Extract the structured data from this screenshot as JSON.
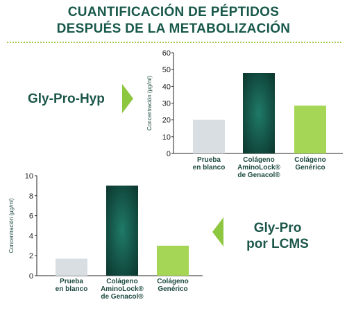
{
  "title": {
    "line1": "CUANTIFICACIÓN DE PÉPTIDOS",
    "line2": "DESPUÉS DE LA METABOLIZACIÓN"
  },
  "colors": {
    "title": "#18584a",
    "divider": "#9cc84a",
    "arrow": "#8dc63f",
    "blank_bar": "#d9dee3",
    "amino_bar_center": "#1f7a68",
    "amino_bar_edge": "#0d3a31",
    "generic_bar": "#a6d655"
  },
  "icons": {
    "arrow_right": "triangle-right-icon",
    "arrow_left": "triangle-left-icon"
  },
  "chart_data": [
    {
      "type": "bar",
      "peptide_label": "Gly-Pro-Hyp",
      "ylabel": "Concentración (μg/ml)",
      "ylim": [
        0,
        60
      ],
      "yticks": [
        "0",
        "10",
        "20",
        "30",
        "40",
        "50",
        "60"
      ],
      "categories": [
        [
          "Prueba",
          "en blanco"
        ],
        [
          "Colágeno",
          "AminoLock®",
          "de Genacol®"
        ],
        [
          "Colágeno",
          "Genérico"
        ]
      ],
      "values": [
        20,
        48,
        28.5
      ]
    },
    {
      "type": "bar",
      "peptide_label": [
        "Gly-Pro",
        "por LCMS"
      ],
      "ylabel": "Concentración (μg/ml)",
      "ylim": [
        0,
        10
      ],
      "yticks": [
        "0",
        "2",
        "4",
        "6",
        "8",
        "10"
      ],
      "categories": [
        [
          "Prueba",
          "en blanco"
        ],
        [
          "Colágeno",
          "AminoLock®",
          "de Genacol®"
        ],
        [
          "Colágeno",
          "Genérico"
        ]
      ],
      "values": [
        1.7,
        9,
        3
      ]
    }
  ]
}
